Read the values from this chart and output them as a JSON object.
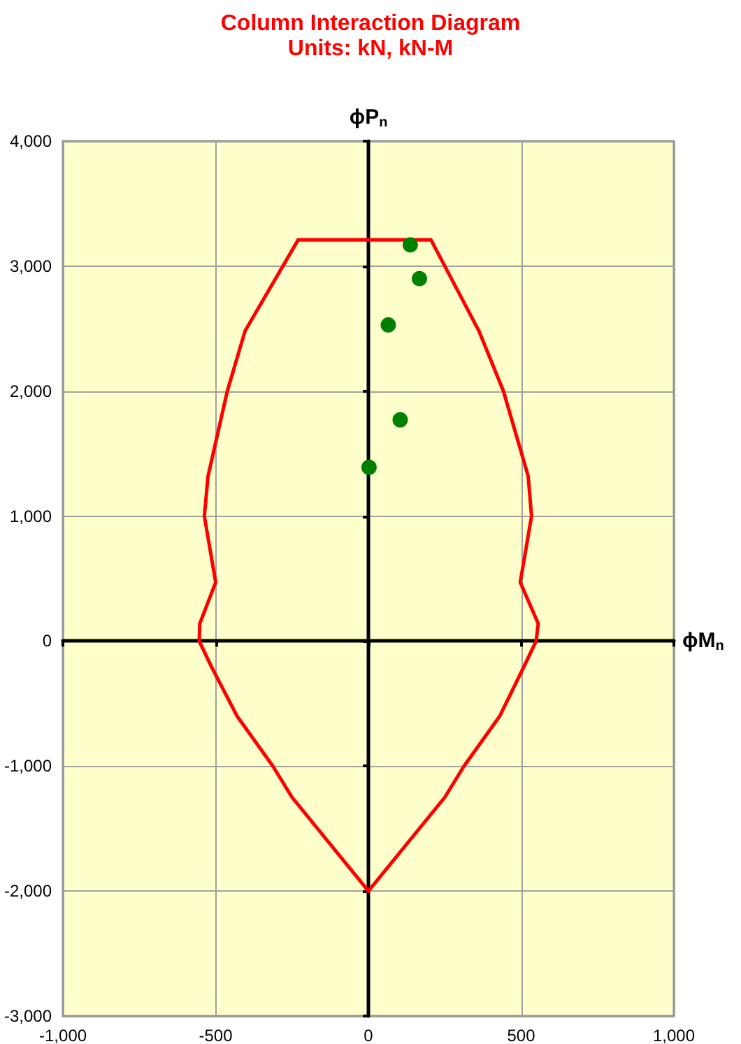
{
  "chart_data": {
    "type": "line",
    "title": "Column Interaction Diagram",
    "subtitle": "Units: kN, kN-M",
    "xlabel": "ϕM$_{n}$",
    "ylabel": "ϕP$_{n}$",
    "xlim": [
      -1000,
      1000
    ],
    "xticks": [
      {
        "value": -1000,
        "label": "-1,000"
      },
      -500,
      0,
      500,
      {
        "value": 1000,
        "label": "1,000"
      }
    ],
    "ylim": [
      -3000,
      4000
    ],
    "yticks": [
      {
        "value": -3000,
        "label": "-3,000"
      },
      {
        "value": -2000,
        "label": "-2,000"
      },
      {
        "value": -1000,
        "label": "-1,000"
      },
      0,
      {
        "value": 1000,
        "label": "1,000"
      },
      {
        "value": 2000,
        "label": "2,000"
      },
      {
        "value": 3000,
        "label": "3,000"
      },
      {
        "value": 4000,
        "label": "4,000"
      }
    ],
    "grid": true,
    "line_style": "solid",
    "series": [
      {
        "type": "line",
        "color": "#ff0000",
        "marker": "none",
        "x": [
          -230,
          205,
          362,
          442,
          523,
          534,
          497,
          556,
          549,
          510,
          430,
          313,
          250,
          0
        ],
        "values": [
          3210,
          3210,
          2480,
          2000,
          1320,
          1000,
          470,
          140,
          0,
          -200,
          -600,
          -1000,
          -1250,
          -2000
        ]
      },
      {
        "type": "line",
        "color": "#ff0000",
        "marker": "none",
        "x": [
          -230,
          -404,
          -462,
          -525,
          -537,
          -500,
          -552,
          -554,
          -515,
          -430,
          -313,
          -250,
          0
        ],
        "values": [
          3210,
          2480,
          2000,
          1320,
          1000,
          470,
          140,
          0,
          -200,
          -600,
          -1000,
          -1250,
          -2000
        ]
      },
      {
        "type": "scatter",
        "color": "#008000",
        "marker": "circle",
        "x": [
          137,
          167,
          65,
          104,
          2
        ],
        "values": [
          3170,
          2900,
          2530,
          1770,
          1390
        ]
      }
    ]
  }
}
